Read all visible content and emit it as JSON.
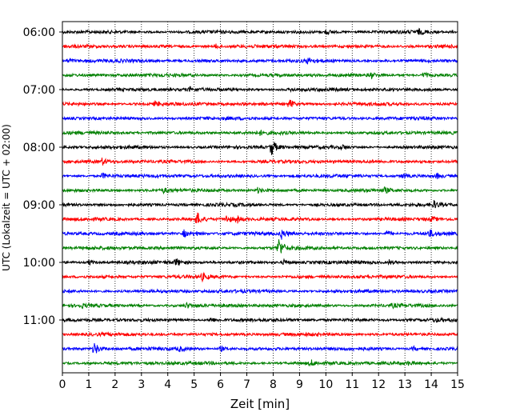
{
  "chart_data": {
    "type": "line",
    "title": "",
    "xlabel": "Zeit  [min]",
    "ylabel": "UTC (Lokalzeit = UTC + 02:00)",
    "xlim": [
      0,
      15
    ],
    "x_ticks": [
      "0",
      "1",
      "2",
      "3",
      "4",
      "5",
      "6",
      "7",
      "8",
      "9",
      "10",
      "11",
      "12",
      "13",
      "14",
      "15"
    ],
    "y_tick_labels": [
      "06:00",
      "07:00",
      "08:00",
      "09:00",
      "10:00",
      "11:00"
    ],
    "grid": "vertical dotted lines at each minute",
    "trace_interval_minutes": 15,
    "colors": [
      "#000000",
      "#ff0000",
      "#0000ff",
      "#008000"
    ],
    "series": [
      {
        "time": "06:00",
        "color": "#000000",
        "events": [
          {
            "x": 10.0,
            "amp": 3
          },
          {
            "x": 13.5,
            "amp": 3
          }
        ]
      },
      {
        "time": "06:15",
        "color": "#ff0000",
        "events": [
          {
            "x": 5.8,
            "amp": 3
          }
        ]
      },
      {
        "time": "06:30",
        "color": "#0000ff",
        "events": [
          {
            "x": 0.2,
            "amp": 3
          },
          {
            "x": 9.3,
            "amp": 3
          }
        ]
      },
      {
        "time": "06:45",
        "color": "#008000",
        "events": [
          {
            "x": 11.7,
            "amp": 3
          },
          {
            "x": 13.7,
            "amp": 4
          }
        ]
      },
      {
        "time": "07:00",
        "color": "#000000",
        "events": [
          {
            "x": 4.8,
            "amp": 3
          },
          {
            "x": 8.6,
            "amp": 2
          }
        ]
      },
      {
        "time": "07:15",
        "color": "#ff0000",
        "events": [
          {
            "x": 3.5,
            "amp": 3
          },
          {
            "x": 8.6,
            "amp": 6
          }
        ]
      },
      {
        "time": "07:30",
        "color": "#0000ff",
        "events": []
      },
      {
        "time": "07:45",
        "color": "#008000",
        "events": [
          {
            "x": 7.5,
            "amp": 2
          }
        ]
      },
      {
        "time": "08:00",
        "color": "#000000",
        "events": [
          {
            "x": 7.9,
            "amp": 13
          },
          {
            "x": 10.6,
            "amp": 3
          }
        ]
      },
      {
        "time": "08:15",
        "color": "#ff0000",
        "events": [
          {
            "x": 1.5,
            "amp": 4
          },
          {
            "x": 13.6,
            "amp": 3
          }
        ]
      },
      {
        "time": "08:30",
        "color": "#0000ff",
        "events": [
          {
            "x": 1.5,
            "amp": 4
          },
          {
            "x": 12.9,
            "amp": 3
          },
          {
            "x": 14.2,
            "amp": 3
          }
        ]
      },
      {
        "time": "08:45",
        "color": "#008000",
        "events": [
          {
            "x": 3.8,
            "amp": 3
          },
          {
            "x": 7.4,
            "amp": 3
          },
          {
            "x": 12.2,
            "amp": 3
          }
        ]
      },
      {
        "time": "09:00",
        "color": "#000000",
        "events": [
          {
            "x": 14.1,
            "amp": 4
          }
        ]
      },
      {
        "time": "09:15",
        "color": "#ff0000",
        "events": [
          {
            "x": 5.1,
            "amp": 9
          },
          {
            "x": 6.2,
            "amp": 5
          },
          {
            "x": 6.6,
            "amp": 5
          },
          {
            "x": 14.0,
            "amp": 3
          }
        ]
      },
      {
        "time": "09:30",
        "color": "#0000ff",
        "events": [
          {
            "x": 4.6,
            "amp": 5
          },
          {
            "x": 5.0,
            "amp": 4
          },
          {
            "x": 8.3,
            "amp": 7
          },
          {
            "x": 12.3,
            "amp": 4
          },
          {
            "x": 13.9,
            "amp": 5
          }
        ]
      },
      {
        "time": "09:45",
        "color": "#008000",
        "events": [
          {
            "x": 8.2,
            "amp": 13
          }
        ]
      },
      {
        "time": "10:00",
        "color": "#000000",
        "events": [
          {
            "x": 1.0,
            "amp": 3
          },
          {
            "x": 4.3,
            "amp": 5
          },
          {
            "x": 8.4,
            "amp": 3
          },
          {
            "x": 12.4,
            "amp": 3
          }
        ]
      },
      {
        "time": "10:15",
        "color": "#ff0000",
        "events": [
          {
            "x": 5.3,
            "amp": 4
          }
        ]
      },
      {
        "time": "10:30",
        "color": "#0000ff",
        "events": []
      },
      {
        "time": "10:45",
        "color": "#008000",
        "events": [
          {
            "x": 0.7,
            "amp": 2
          },
          {
            "x": 4.7,
            "amp": 3
          },
          {
            "x": 12.5,
            "amp": 2
          }
        ]
      },
      {
        "time": "11:00",
        "color": "#000000",
        "events": [
          {
            "x": 5.6,
            "amp": 4
          },
          {
            "x": 14.1,
            "amp": 2
          }
        ]
      },
      {
        "time": "11:15",
        "color": "#ff0000",
        "events": []
      },
      {
        "time": "11:30",
        "color": "#0000ff",
        "events": [
          {
            "x": 1.2,
            "amp": 9
          },
          {
            "x": 4.4,
            "amp": 3
          },
          {
            "x": 6.0,
            "amp": 3
          },
          {
            "x": 13.3,
            "amp": 3
          }
        ]
      },
      {
        "time": "11:45",
        "color": "#008000",
        "events": [
          {
            "x": 9.4,
            "amp": 4
          },
          {
            "x": 13.1,
            "amp": 2
          }
        ]
      }
    ]
  }
}
